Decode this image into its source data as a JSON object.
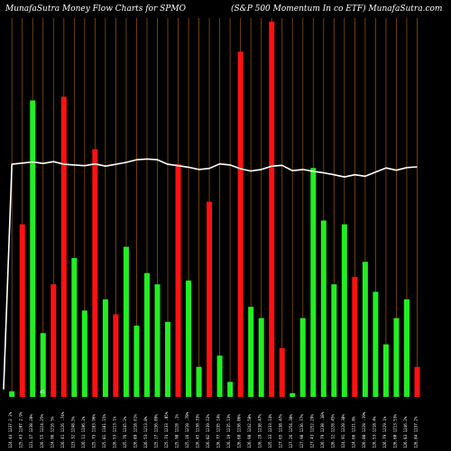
{
  "header": {
    "left_title": "MunafaSutra  Money Flow  Charts for SPMO",
    "right_title": "(S&P 500   Momentum In     co   ETF) MunafaSutra.com"
  },
  "chart_data": {
    "type": "bar",
    "background": "#000000",
    "grid": true,
    "grid_color": "#8a4f08",
    "positive_color": "#22ee22",
    "negative_color": "#ff1111",
    "line_color": "#ffffff",
    "ylim": [
      0,
      100
    ],
    "bar_values": [
      1.5,
      46,
      79,
      17,
      30,
      80,
      37,
      23,
      66,
      26,
      22,
      40,
      19,
      33,
      30,
      20,
      62,
      31,
      8,
      52,
      11,
      4,
      92,
      24,
      21,
      100,
      13,
      1,
      21,
      61,
      47,
      30,
      46,
      32,
      36,
      28,
      14,
      21,
      26,
      8
    ],
    "bar_colors": [
      "green",
      "red",
      "green",
      "green",
      "red",
      "red",
      "green",
      "green",
      "red",
      "green",
      "red",
      "green",
      "green",
      "green",
      "green",
      "green",
      "red",
      "green",
      "green",
      "red",
      "green",
      "green",
      "red",
      "green",
      "green",
      "red",
      "red",
      "green",
      "green",
      "green",
      "green",
      "green",
      "green",
      "red",
      "green",
      "green",
      "green",
      "green",
      "green",
      "red"
    ],
    "line_values": [
      62,
      62.3,
      62.6,
      62.2,
      62.7,
      62,
      61.8,
      61.6,
      62.1,
      61.5,
      62,
      62.5,
      63.2,
      63.4,
      63.2,
      62,
      61.6,
      61.2,
      60.6,
      60.9,
      62.1,
      61.8,
      60.8,
      60.2,
      60.6,
      61.5,
      61.7,
      60.3,
      60.6,
      60.1,
      59.7,
      59.2,
      58.6,
      59.2,
      58.8,
      59.9,
      61,
      60.4,
      61.1,
      61.3
    ],
    "line_start_value": 2,
    "x_labels": [
      "124.44 1237.2 2%",
      "125.43 1207 2.9%",
      "121.17 1238.28%",
      "126.55 1224.25%",
      "124.96 1216 5%",
      "126.41 1226 .74%",
      "123.32 1248.5%",
      "126.11 1196.2%",
      "125.73 1183.96%",
      "125.81 1181.15%",
      "126.53 1213.1%",
      "125.76 1245.2%",
      "126.89 1218.61%",
      "126.53 1213.8%",
      "125.27 1236.09%",
      "125.74 1233 .05%",
      "125.98 1228 .1%",
      "125.16 1210 .78%",
      "126.45 1238.33%",
      "126.02 1239.12%",
      "126.77 1235 14%",
      "126.19 1235.13%",
      "126.68 1236.06%",
      "126.98 1242.58%",
      "126.29 1238.47%",
      "125.33 1233.14%",
      "127.65 1238.47%",
      "127.26 1254.38%",
      "127.98 1236.77%",
      "127.43 1252.29%",
      "126.79 1238 .18%",
      "126.12 1228.45%",
      "124.91 1220.38%",
      "124.66 1221.8%",
      "126.80 1228 .19%",
      "126.53 1218.4%",
      "126.79 1229.1%",
      "126.60 1213.53%",
      "126.83 1246.2%",
      "126.84 1237.2%"
    ],
    "marker_label": "45"
  }
}
